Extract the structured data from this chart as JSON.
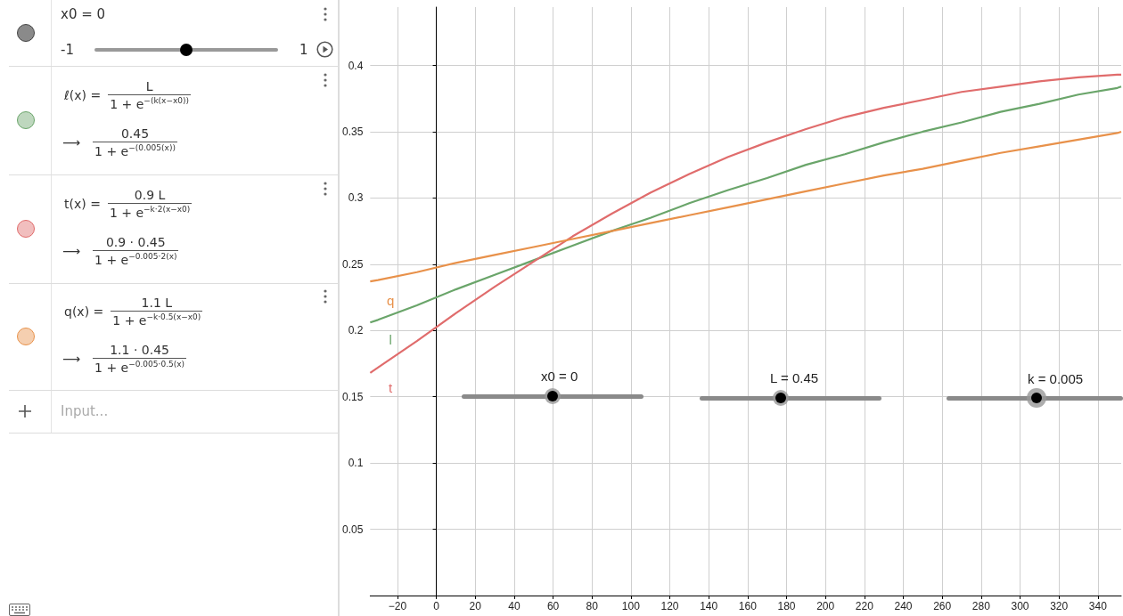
{
  "chart_data": {
    "type": "line",
    "x": [
      -34,
      -30,
      -10,
      10,
      30,
      50,
      70,
      90,
      110,
      130,
      150,
      170,
      190,
      210,
      230,
      250,
      270,
      290,
      310,
      330,
      350,
      352
    ],
    "series": [
      {
        "name": "l",
        "color": "#6aa56a",
        "values": [
          0.206,
          0.208,
          0.219,
          0.231,
          0.242,
          0.253,
          0.264,
          0.275,
          0.285,
          0.296,
          0.306,
          0.315,
          0.325,
          0.333,
          0.342,
          0.35,
          0.357,
          0.365,
          0.371,
          0.378,
          0.383,
          0.384
        ]
      },
      {
        "name": "t",
        "color": "#e06c6c",
        "values": [
          0.168,
          0.172,
          0.192,
          0.213,
          0.233,
          0.252,
          0.271,
          0.288,
          0.304,
          0.318,
          0.331,
          0.342,
          0.352,
          0.361,
          0.368,
          0.374,
          0.38,
          0.384,
          0.388,
          0.391,
          0.393,
          0.393
        ]
      },
      {
        "name": "q",
        "color": "#e8914a",
        "values": [
          0.237,
          0.238,
          0.244,
          0.251,
          0.257,
          0.263,
          0.269,
          0.275,
          0.281,
          0.287,
          0.293,
          0.299,
          0.305,
          0.311,
          0.317,
          0.322,
          0.328,
          0.334,
          0.339,
          0.344,
          0.349,
          0.35
        ]
      }
    ],
    "xlim": [
      -34,
      352
    ],
    "ylim": [
      0,
      0.444
    ],
    "xticks": [
      {
        "value": -20,
        "label": "−20"
      },
      0,
      20,
      40,
      60,
      80,
      100,
      120,
      140,
      160,
      180,
      200,
      220,
      240,
      260,
      280,
      300,
      320,
      340
    ],
    "yticks": [
      0.05,
      0.1,
      0.15,
      0.2,
      0.25,
      0.3,
      0.35,
      0.4
    ],
    "grid": true,
    "legend": false,
    "annotations": [
      "x0 = 0",
      "-1",
      "1",
      "ℓ(x) =",
      "L",
      "1 + e$^{−(k(x−x0))}$",
      "⟶",
      "0.45",
      "1 + e$^{−(0.005(x))}$",
      "t(x) =",
      "0.9 L",
      "1 + e$^{−k·2(x−x0)}$",
      "⟶",
      "0.9 · 0.45",
      "1 + e$^{−0.005·2(x)}$",
      "q(x) =",
      "1.1 L",
      "1 + e$^{−k·0.5(x−x0)}$",
      "⟶",
      "1.1 · 0.45",
      "1 + e$^{−0.005·0.5(x)}$",
      "Input...",
      "x0 = 0",
      "L = 0.45",
      "k = 0.005"
    ]
  }
}
